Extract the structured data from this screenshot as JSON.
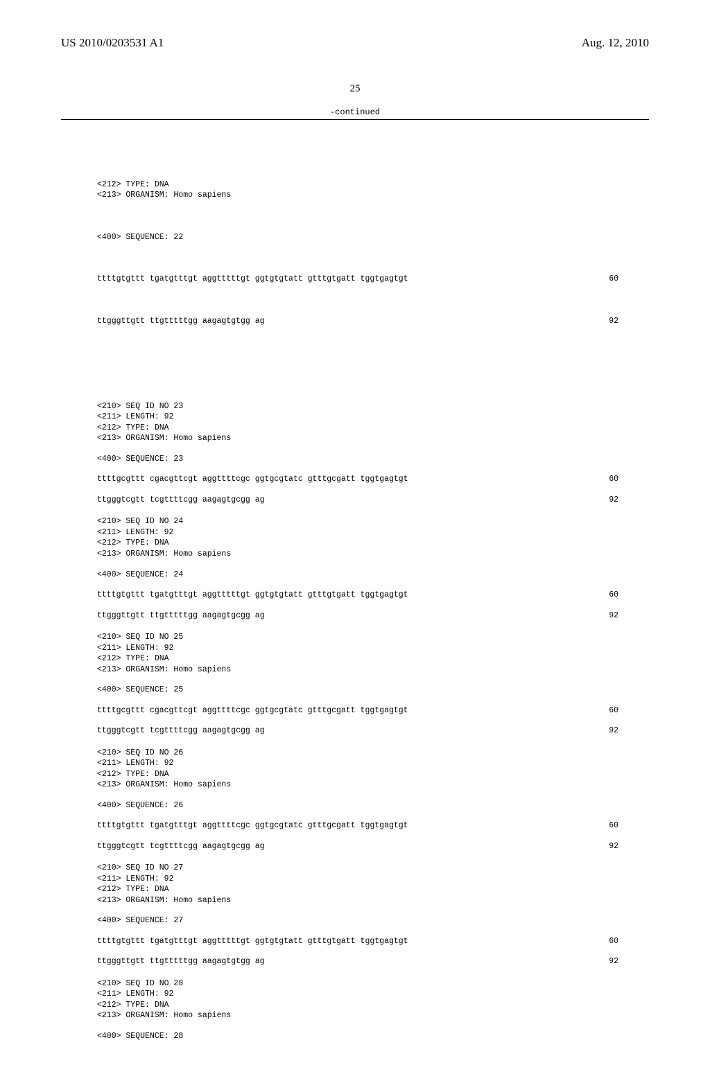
{
  "header": {
    "pub_number": "US 2010/0203531 A1",
    "pub_date": "Aug. 12, 2010"
  },
  "page_number": "25",
  "continued_label": "-continued",
  "top_block": {
    "header_lines": [
      "<212> TYPE: DNA",
      "<213> ORGANISM: Homo sapiens"
    ],
    "seq_label": "<400> SEQUENCE: 22",
    "seq_lines": [
      {
        "text": "ttttgtgttt tgatgtttgt aggtttttgt ggtgtgtatt gtttgtgatt tggtgagtgt",
        "num": "60"
      },
      {
        "text": "ttgggttgtt ttgtttttgg aagagtgtgg ag",
        "num": "92"
      }
    ]
  },
  "blocks": [
    {
      "header_lines": [
        "<210> SEQ ID NO 23",
        "<211> LENGTH: 92",
        "<212> TYPE: DNA",
        "<213> ORGANISM: Homo sapiens"
      ],
      "seq_label": "<400> SEQUENCE: 23",
      "seq_lines": [
        {
          "text": "ttttgcgttt cgacgttcgt aggttttcgc ggtgcgtatc gtttgcgatt tggtgagtgt",
          "num": "60"
        },
        {
          "text": "ttgggtcgtt tcgttttcgg aagagtgcgg ag",
          "num": "92"
        }
      ]
    },
    {
      "header_lines": [
        "<210> SEQ ID NO 24",
        "<211> LENGTH: 92",
        "<212> TYPE: DNA",
        "<213> ORGANISM: Homo sapiens"
      ],
      "seq_label": "<400> SEQUENCE: 24",
      "seq_lines": [
        {
          "text": "ttttgtgttt tgatgtttgt aggtttttgt ggtgtgtatt gtttgtgatt tggtgagtgt",
          "num": "60"
        },
        {
          "text": "ttgggttgtt ttgtttttgg aagagtgcgg ag",
          "num": "92"
        }
      ]
    },
    {
      "header_lines": [
        "<210> SEQ ID NO 25",
        "<211> LENGTH: 92",
        "<212> TYPE: DNA",
        "<213> ORGANISM: Homo sapiens"
      ],
      "seq_label": "<400> SEQUENCE: 25",
      "seq_lines": [
        {
          "text": "ttttgcgttt cgacgttcgt aggttttcgc ggtgcgtatc gtttgcgatt tggtgagtgt",
          "num": "60"
        },
        {
          "text": "ttgggtcgtt tcgttttcgg aagagtgcgg ag",
          "num": "92"
        }
      ]
    },
    {
      "header_lines": [
        "<210> SEQ ID NO 26",
        "<211> LENGTH: 92",
        "<212> TYPE: DNA",
        "<213> ORGANISM: Homo sapiens"
      ],
      "seq_label": "<400> SEQUENCE: 26",
      "seq_lines": [
        {
          "text": "ttttgtgttt tgatgtttgt aggttttcgc ggtgcgtatc gtttgcgatt tggtgagtgt",
          "num": "60"
        },
        {
          "text": "ttgggtcgtt tcgttttcgg aagagtgcgg ag",
          "num": "92"
        }
      ]
    },
    {
      "header_lines": [
        "<210> SEQ ID NO 27",
        "<211> LENGTH: 92",
        "<212> TYPE: DNA",
        "<213> ORGANISM: Homo sapiens"
      ],
      "seq_label": "<400> SEQUENCE: 27",
      "seq_lines": [
        {
          "text": "ttttgtgttt tgatgtttgt aggtttttgt ggtgtgtatt gtttgtgatt tggtgagtgt",
          "num": "60"
        },
        {
          "text": "ttgggttgtt ttgtttttgg aagagtgtgg ag",
          "num": "92"
        }
      ]
    },
    {
      "header_lines": [
        "<210> SEQ ID NO 28",
        "<211> LENGTH: 92",
        "<212> TYPE: DNA",
        "<213> ORGANISM: Homo sapiens"
      ],
      "seq_label": "<400> SEQUENCE: 28",
      "seq_lines": []
    }
  ]
}
